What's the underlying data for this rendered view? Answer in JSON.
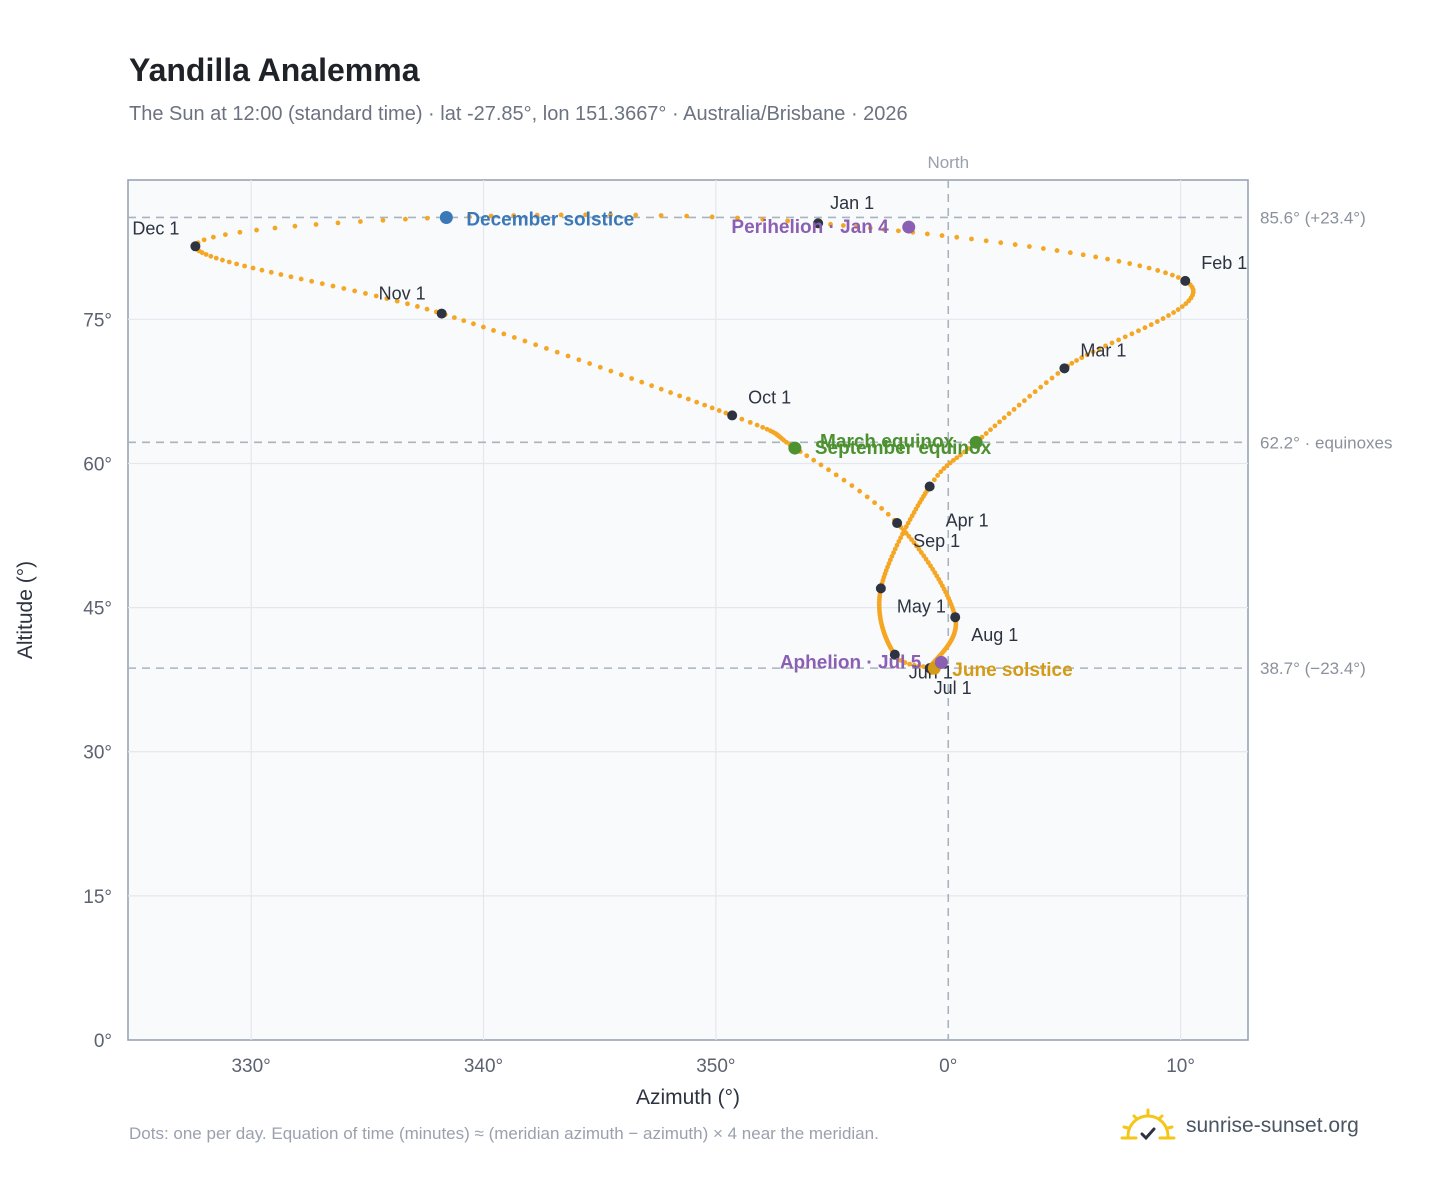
{
  "header": {
    "title": "Yandilla Analemma",
    "subtitle": "The Sun at 12:00 (standard time) · lat -27.85°, lon 151.3667° · Australia/Brisbane · 2026"
  },
  "footer": {
    "note": "Dots: one per day. Equation of time (minutes) ≈ (meridian azimuth − azimuth) × 4 near the meridian.",
    "brand": "sunrise-sunset.org"
  },
  "colors": {
    "path": "#f5a623",
    "month_marker": "#2d3340",
    "december_solstice": "#3a78b8",
    "june_solstice": "#d39b16",
    "equinox": "#4e9130",
    "apsis": "#8b5fb3",
    "reference_line": "#a9b4be"
  },
  "chart_data": {
    "type": "scatter",
    "xlabel": "Azimuth (°)",
    "ylabel": "Altitude (°)",
    "xlim": [
      324.7,
      12.9
    ],
    "ylim": [
      0,
      89.5
    ],
    "x_ticks": [
      "330°",
      "340°",
      "350°",
      "0°",
      "10°"
    ],
    "x_tick_values": [
      330,
      340,
      350,
      0,
      10
    ],
    "y_ticks": [
      "0°",
      "15°",
      "30°",
      "45°",
      "60°",
      "75°"
    ],
    "y_tick_values": [
      0,
      15,
      30,
      45,
      60,
      75
    ],
    "grid": true,
    "meridian_label": "North",
    "reference_lines": [
      {
        "value": 85.6,
        "label": "85.6° (+23.4°)"
      },
      {
        "value": 62.2,
        "label": "62.2° · equinoxes"
      },
      {
        "value": 38.7,
        "label": "38.7° (−23.4°)"
      }
    ],
    "month_markers": [
      {
        "label": "Jan 1",
        "az": 354.4,
        "alt": 85.0
      },
      {
        "label": "Feb 1",
        "az": 10.2,
        "alt": 79.0
      },
      {
        "label": "Mar 1",
        "az": 5.0,
        "alt": 69.9
      },
      {
        "label": "Apr 1",
        "az": 359.2,
        "alt": 57.6
      },
      {
        "label": "May 1",
        "az": 357.1,
        "alt": 47.0
      },
      {
        "label": "Jun 1",
        "az": 357.7,
        "alt": 40.1
      },
      {
        "label": "Jul 1",
        "az": 359.2,
        "alt": 38.7
      },
      {
        "label": "Aug 1",
        "az": 0.3,
        "alt": 44.0
      },
      {
        "label": "Sep 1",
        "az": 357.8,
        "alt": 53.8
      },
      {
        "label": "Oct 1",
        "az": 350.7,
        "alt": 65.0
      },
      {
        "label": "Nov 1",
        "az": 338.2,
        "alt": 75.6
      },
      {
        "label": "Dec 1",
        "az": 327.6,
        "alt": 82.6
      }
    ],
    "events": [
      {
        "label": "December solstice",
        "az": 338.4,
        "alt": 85.6,
        "color": "#3a78b8"
      },
      {
        "label": "June solstice",
        "az": 359.4,
        "alt": 38.7,
        "color": "#d39b16"
      },
      {
        "label": "March equinox",
        "az": 1.2,
        "alt": 62.2,
        "color": "#4e9130"
      },
      {
        "label": "September equinox",
        "az": 353.4,
        "alt": 61.6,
        "color": "#4e9130"
      },
      {
        "label": "Perihelion · Jan 4",
        "az": 358.3,
        "alt": 84.6,
        "color": "#8b5fb3"
      },
      {
        "label": "Aphelion · Jul 5",
        "az": 359.7,
        "alt": 39.3,
        "color": "#8b5fb3"
      }
    ]
  }
}
